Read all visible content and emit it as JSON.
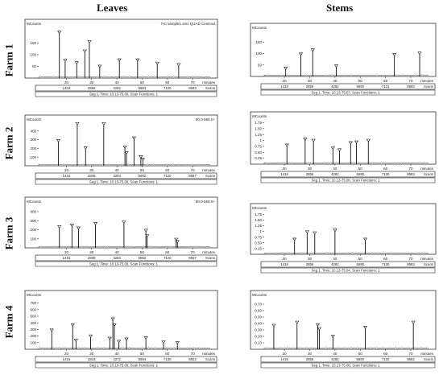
{
  "columns": [
    "Leaves",
    "Stems"
  ],
  "rows": [
    "Farm 1",
    "Farm 2",
    "Farm 3",
    "Farm 4"
  ],
  "chart_data": [
    {
      "type": "bar",
      "panel": "Farm 1 - Leaves",
      "ylabel": "MCounts",
      "xlabel": "minutes",
      "header": "TIC sample1.sms QUAD Centroid",
      "yticks": [
        50,
        100,
        150
      ],
      "ylim": [
        0,
        220
      ],
      "xticks": [
        20,
        30,
        40,
        50,
        60,
        70
      ],
      "xlim": [
        9,
        77
      ],
      "scan_ticks": [
        "1403",
        "2858",
        "4282",
        "5683",
        "7120",
        "8583"
      ],
      "scan_label": "Scans",
      "footer": "Seg 1, Time: 10.13-75.00, Scan Functions: 1",
      "peaks": [
        {
          "x": 17.2,
          "y": 190
        },
        {
          "x": 19.5,
          "y": 70
        },
        {
          "x": 24.1,
          "y": 60
        },
        {
          "x": 27.3,
          "y": 110
        },
        {
          "x": 29.1,
          "y": 150
        },
        {
          "x": 33.2,
          "y": 45
        },
        {
          "x": 41.0,
          "y": 72
        },
        {
          "x": 48.2,
          "y": 72
        },
        {
          "x": 56.0,
          "y": 58
        },
        {
          "x": 64.5,
          "y": 52
        }
      ]
    },
    {
      "type": "bar",
      "panel": "Farm 1 - Stems",
      "ylabel": "MCounts",
      "xlabel": "minutes",
      "yticks": [
        50,
        100,
        150
      ],
      "ylim": [
        0,
        200
      ],
      "xticks": [
        20,
        30,
        40,
        50,
        60,
        70
      ],
      "xlim": [
        12,
        77
      ],
      "scan_ticks": [
        "1416",
        "2856",
        "4282",
        "5690",
        "7131",
        "8583"
      ],
      "scan_label": "Scans",
      "footer": "Seg 1, Time: 10.13-75.07, Scan Functions: 1",
      "peaks": [
        {
          "x": 20.5,
          "y": 30
        },
        {
          "x": 26.5,
          "y": 92
        },
        {
          "x": 31.2,
          "y": 110
        },
        {
          "x": 40.5,
          "y": 40
        },
        {
          "x": 63.5,
          "y": 90
        },
        {
          "x": 73.5,
          "y": 96
        }
      ]
    },
    {
      "type": "bar",
      "panel": "Farm 2 - Leaves",
      "ylabel": "MCounts",
      "xlabel": "minutes",
      "header": "50.0-650.0+",
      "yticks": [
        100,
        200,
        300,
        400
      ],
      "ylim": [
        0,
        500
      ],
      "xticks": [
        20,
        30,
        40,
        50,
        60,
        70
      ],
      "xlim": [
        9,
        77
      ],
      "scan_ticks": [
        "1416",
        "2838",
        "4284",
        "5682",
        "7120",
        "8557"
      ],
      "scan_label": "Scans",
      "footer": "Seg 1, Time: 10.13-75.00, Scan Functions: 1",
      "peaks": [
        {
          "x": 16.8,
          "y": 275
        },
        {
          "x": 24.3,
          "y": 470
        },
        {
          "x": 27.6,
          "y": 190
        },
        {
          "x": 34.8,
          "y": 470
        },
        {
          "x": 43.2,
          "y": 200
        },
        {
          "x": 43.8,
          "y": 135
        },
        {
          "x": 46.8,
          "y": 305
        },
        {
          "x": 49.5,
          "y": 90
        },
        {
          "x": 50.3,
          "y": 60
        }
      ]
    },
    {
      "type": "bar",
      "panel": "Farm 2 - Stems",
      "ylabel": "MCounts",
      "xlabel": "minutes",
      "yticks": [
        0.25,
        0.5,
        0.75,
        1.0,
        1.25,
        1.5,
        1.75
      ],
      "ylim": [
        0,
        1.9
      ],
      "xticks": [
        20,
        30,
        40,
        50,
        60,
        70
      ],
      "xlim": [
        12,
        77
      ],
      "scan_ticks": [
        "1416",
        "2856",
        "4282",
        "5690",
        "7130",
        "8583"
      ],
      "scan_label": "Scans",
      "footer": "Seg 1, Time: 10.13-75.00, Scan Functions: 1",
      "peaks": [
        {
          "x": 21.0,
          "y": 0.75
        },
        {
          "x": 28.2,
          "y": 1.0
        },
        {
          "x": 31.5,
          "y": 0.95
        },
        {
          "x": 39.2,
          "y": 0.62
        },
        {
          "x": 41.8,
          "y": 0.55
        },
        {
          "x": 46.2,
          "y": 0.85
        },
        {
          "x": 48.5,
          "y": 0.88
        },
        {
          "x": 53.2,
          "y": 0.95
        }
      ]
    },
    {
      "type": "bar",
      "panel": "Farm 3 - Leaves",
      "ylabel": "MCounts",
      "xlabel": "minutes",
      "header": "50.0-650.0+",
      "yticks": [
        100,
        200,
        300,
        400
      ],
      "ylim": [
        0,
        480
      ],
      "xticks": [
        20,
        30,
        40,
        50,
        60,
        70
      ],
      "xlim": [
        9,
        77
      ],
      "scan_ticks": [
        "1416",
        "2838",
        "4284",
        "5682",
        "7120",
        "8557"
      ],
      "scan_label": "Scans",
      "footer": "Seg 1, Time: 10.13-75.00, Scan Functions: 1",
      "peaks": [
        {
          "x": 17.2,
          "y": 220
        },
        {
          "x": 22.2,
          "y": 235
        },
        {
          "x": 24.8,
          "y": 205
        },
        {
          "x": 31.5,
          "y": 255
        },
        {
          "x": 42.8,
          "y": 270
        },
        {
          "x": 51.5,
          "y": 180
        },
        {
          "x": 52.0,
          "y": 120
        },
        {
          "x": 63.5,
          "y": 80
        },
        {
          "x": 64.0,
          "y": 55
        }
      ]
    },
    {
      "type": "bar",
      "panel": "Farm 3 - Stems",
      "ylabel": "MCounts",
      "xlabel": "minutes",
      "yticks": [
        0.25,
        0.5,
        0.75,
        1.0,
        1.25,
        1.5,
        1.75
      ],
      "ylim": [
        0,
        1.9
      ],
      "xticks": [
        20,
        30,
        40,
        50,
        60,
        70
      ],
      "xlim": [
        12,
        77
      ],
      "scan_ticks": [
        "1416",
        "2856",
        "4282",
        "5690",
        "7130",
        "8583"
      ],
      "scan_label": "Scans",
      "footer": "Seg 1, Time: 10.13-75.04, Scan Functions: 1",
      "peaks": [
        {
          "x": 24.0,
          "y": 0.6
        },
        {
          "x": 29.0,
          "y": 0.92
        },
        {
          "x": 32.0,
          "y": 0.88
        },
        {
          "x": 40.0,
          "y": 1.0
        },
        {
          "x": 52.0,
          "y": 0.6
        }
      ]
    },
    {
      "type": "bar",
      "panel": "Farm 4 - Leaves",
      "ylabel": "MCounts",
      "xlabel": "minutes",
      "yticks": [
        100,
        200,
        300,
        400,
        500,
        600,
        700
      ],
      "ylim": [
        0,
        780
      ],
      "xticks": [
        20,
        30,
        40,
        50,
        60,
        70
      ],
      "xlim": [
        9,
        77
      ],
      "scan_ticks": [
        "1416",
        "2843",
        "4272",
        "5694",
        "7130",
        "8552"
      ],
      "scan_label": "Scans",
      "footer": "Seg 1, Time: 10.13-75.00, Scan Functions: 1",
      "peaks": [
        {
          "x": 14.2,
          "y": 270
        },
        {
          "x": 22.5,
          "y": 350
        },
        {
          "x": 23.8,
          "y": 115
        },
        {
          "x": 29.6,
          "y": 180
        },
        {
          "x": 37.2,
          "y": 145
        },
        {
          "x": 38.4,
          "y": 440
        },
        {
          "x": 39.0,
          "y": 350
        },
        {
          "x": 40.8,
          "y": 100
        },
        {
          "x": 43.8,
          "y": 135
        },
        {
          "x": 51.5,
          "y": 155
        },
        {
          "x": 58.5,
          "y": 90
        },
        {
          "x": 64.0,
          "y": 80
        }
      ]
    },
    {
      "type": "bar",
      "panel": "Farm 4 - Stems",
      "ylabel": "MCounts",
      "xlabel": "minutes",
      "yticks": [
        0.1,
        0.2,
        0.3,
        0.4,
        0.5,
        0.6,
        0.7
      ],
      "ylim": [
        0,
        0.8
      ],
      "xticks": [
        20,
        30,
        40,
        50,
        60,
        70
      ],
      "xlim": [
        12,
        77
      ],
      "scan_ticks": [
        "1416",
        "2856",
        "4282",
        "5690",
        "7130",
        "8582"
      ],
      "scan_label": "Scans",
      "footer": "Seg 1, Time: 10.13-75.00, Scan Functions: 1",
      "peaks": [
        {
          "x": 15.8,
          "y": 0.35
        },
        {
          "x": 25.0,
          "y": 0.4
        },
        {
          "x": 33.2,
          "y": 0.36
        },
        {
          "x": 33.8,
          "y": 0.3
        },
        {
          "x": 39.2,
          "y": 0.18
        },
        {
          "x": 52.0,
          "y": 0.32
        },
        {
          "x": 71.0,
          "y": 0.4
        }
      ]
    }
  ]
}
